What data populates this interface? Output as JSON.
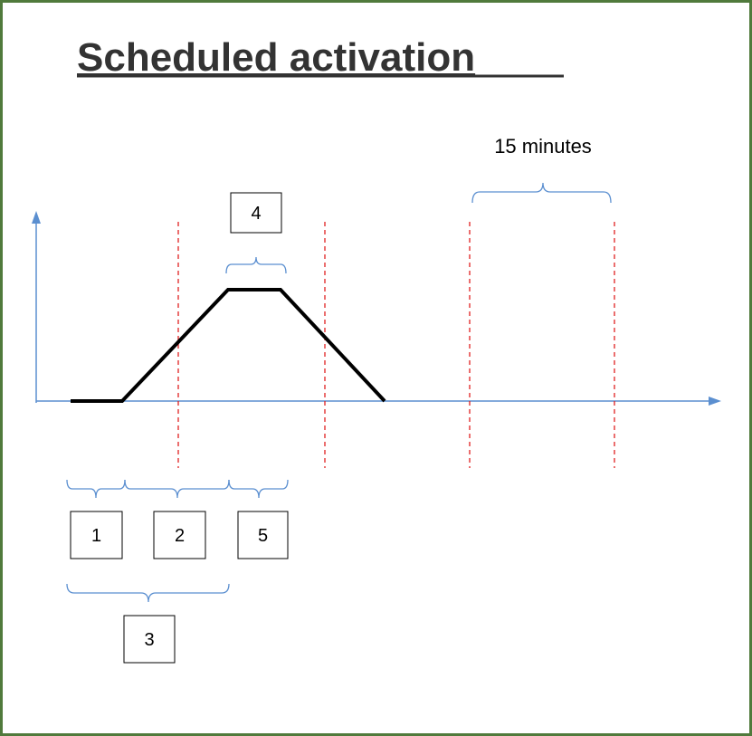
{
  "title": "Scheduled activation",
  "duration_label": "15 minutes",
  "boxes": [
    "1",
    "2",
    "3",
    "4",
    "5"
  ]
}
